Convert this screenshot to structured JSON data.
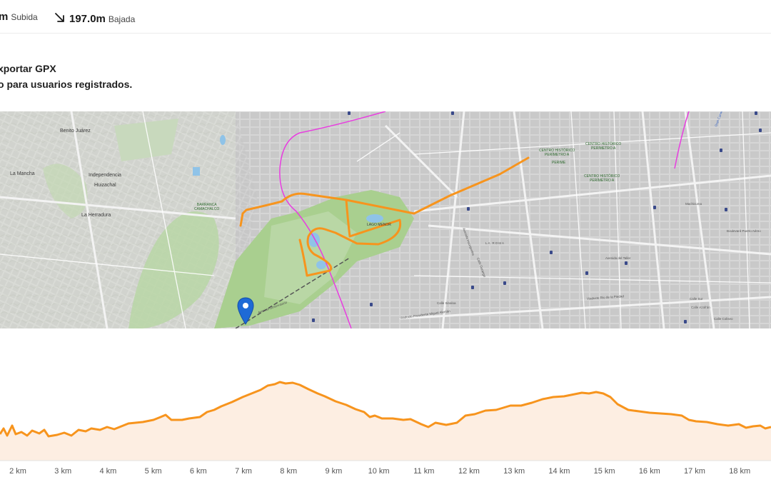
{
  "stats": {
    "ascent_value": "m",
    "ascent_label": "Subida",
    "descent_value": "197.0m",
    "descent_label": "Bajada",
    "arrow_icon": "arrow-down-right-icon"
  },
  "export": {
    "title": "xportar GPX",
    "note": "o para usuarios registrados."
  },
  "map": {
    "route_color": "#f7941d",
    "transit_line_color": "#e83de0",
    "pin_color": "#1e6ad6",
    "labels": {
      "benito_juarez": "Benito Juárez",
      "la_mancha": "La Mancha",
      "independencia": "Independencia",
      "huizachal": "Huizachal",
      "la_herradura": "La Herradura",
      "barranca_line1": "BARRANCA",
      "barranca_line2": "CAMACHALCO",
      "lago_menor": "LAGO MENOR",
      "la_roma": "LA ROMA",
      "centro_a_line1": "CENTRO HISTÓRICO",
      "centro_a_line2": "PERÍMETRO A",
      "centro_b_line1": "CENTRO HISTÓRICO",
      "centro_b_line2": "PERÍMETRO A",
      "centro_c_line1": "CENTRO HISTÓRICO",
      "centro_c_line2": "PERÍMETRO A",
      "perime": "PERIME",
      "machicuma": "Machicuma",
      "bulevard": "Boulevard Puerto Aéreo",
      "avenida_talleres": "Avenida del Taller",
      "calle_sur": "Calle Sur",
      "calle_azafran": "Calle Azafrán",
      "calle_coliseo": "Calle Coliseo",
      "viaducto": "Viaducto Río de la Piedad",
      "viaducto_miguel": "Viaducto Presidente Miguel Alemán",
      "avenida_observatorio": "Avenida Observatorio",
      "calle_sinaloa": "Calle Sinaloa",
      "calle_durango": "Calle Durango",
      "avenida_insurgentes": "Avenida Insurgentes",
      "gran_canal": "Gran Canal"
    }
  },
  "elevation": {
    "fill_color": "#fdeee2",
    "line_color": "#f7941d",
    "km_labels": [
      "2 km",
      "3 km",
      "4 km",
      "5 km",
      "6 km",
      "7 km",
      "8 km",
      "9 km",
      "10 km",
      "11 km",
      "12 km",
      "13 km",
      "14 km",
      "15 km",
      "16 km",
      "17 km",
      "18 km"
    ]
  }
}
